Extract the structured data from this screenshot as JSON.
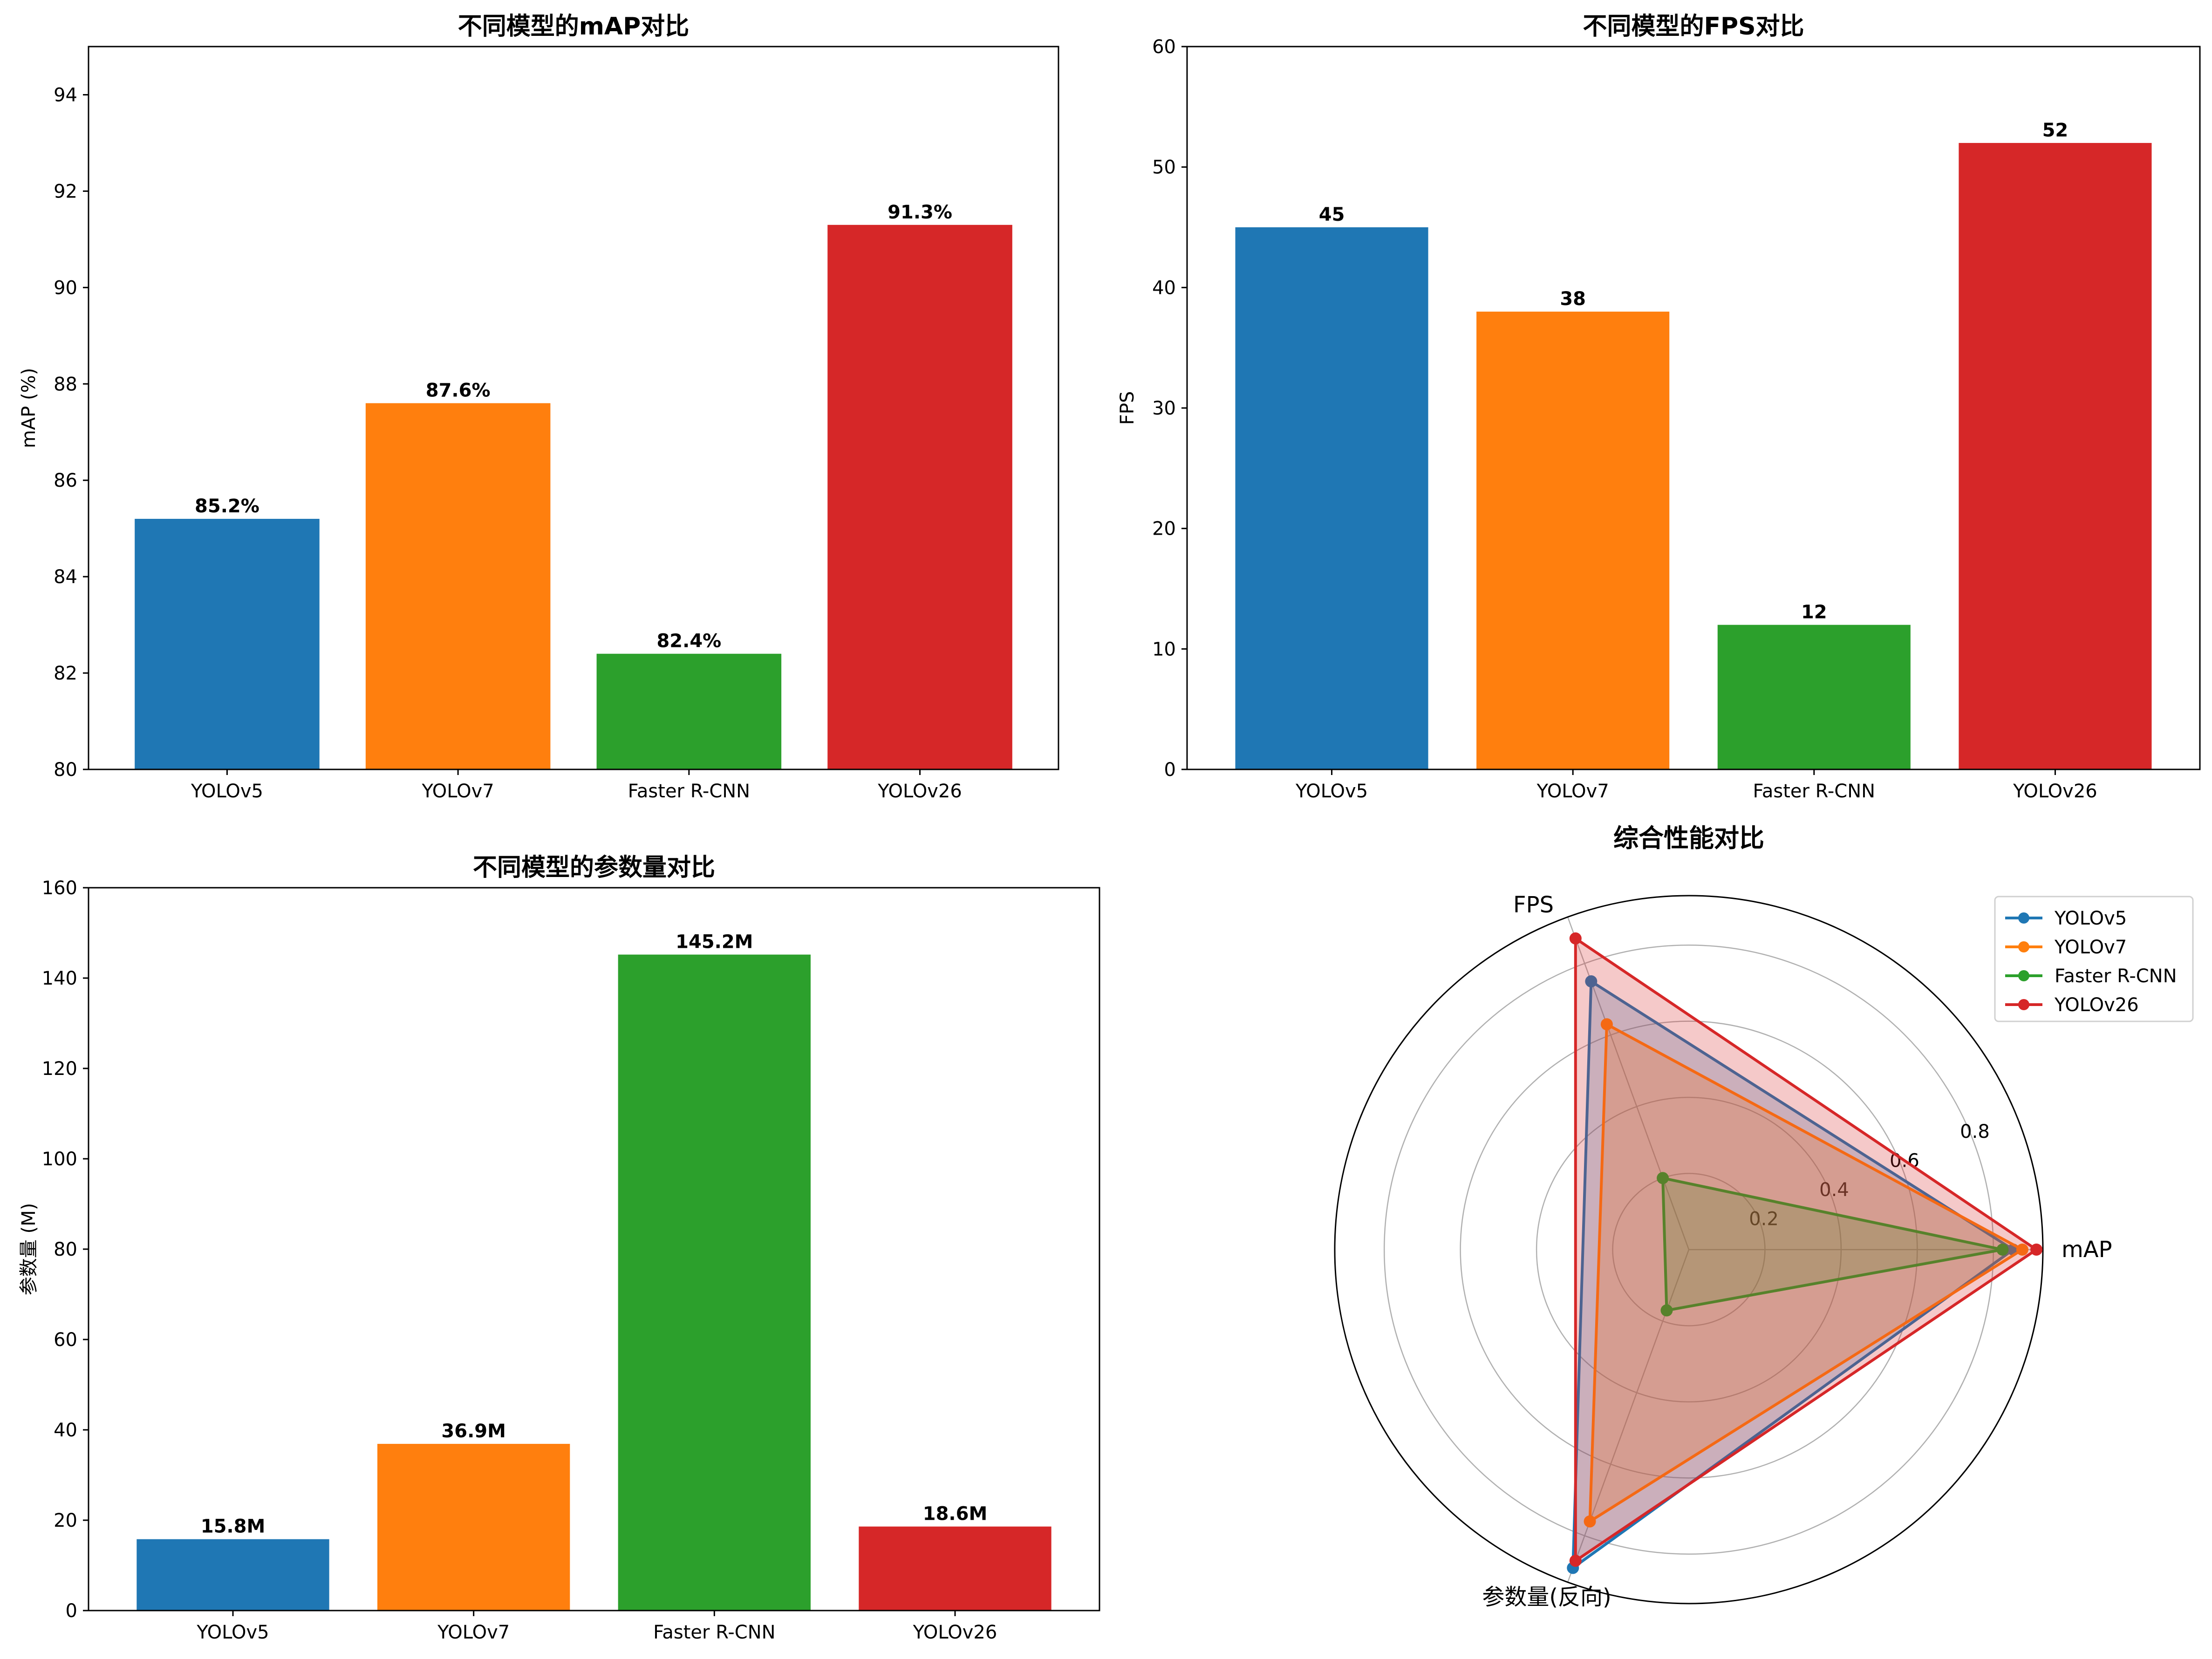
{
  "colors": {
    "YOLOv5": "#1f77b4",
    "YOLOv7": "#ff7f0e",
    "Faster R-CNN": "#2ca02c",
    "YOLOv26": "#d62728",
    "axis": "#000000",
    "grid": "#b0b0b0"
  },
  "chart_data": [
    {
      "type": "bar",
      "title": "不同模型的mAP对比",
      "xlabel": "",
      "ylabel": "mAP (%)",
      "categories": [
        "YOLOv5",
        "YOLOv7",
        "Faster R-CNN",
        "YOLOv26"
      ],
      "values": [
        85.2,
        87.6,
        82.4,
        91.3
      ],
      "value_labels": [
        "85.2%",
        "87.6%",
        "82.4%",
        "91.3%"
      ],
      "ylim": [
        80,
        95
      ],
      "yticks": [
        80,
        82,
        84,
        86,
        88,
        90,
        92,
        94
      ],
      "grid": false
    },
    {
      "type": "bar",
      "title": "不同模型的FPS对比",
      "xlabel": "",
      "ylabel": "FPS",
      "categories": [
        "YOLOv5",
        "YOLOv7",
        "Faster R-CNN",
        "YOLOv26"
      ],
      "values": [
        45,
        38,
        12,
        52
      ],
      "value_labels": [
        "45",
        "38",
        "12",
        "52"
      ],
      "ylim": [
        0,
        60
      ],
      "yticks": [
        0,
        10,
        20,
        30,
        40,
        50,
        60
      ],
      "grid": false
    },
    {
      "type": "bar",
      "title": "不同模型的参数量对比",
      "xlabel": "",
      "ylabel": "参数量 (M)",
      "categories": [
        "YOLOv5",
        "YOLOv7",
        "Faster R-CNN",
        "YOLOv26"
      ],
      "values": [
        15.8,
        36.9,
        145.2,
        18.6
      ],
      "value_labels": [
        "15.8M",
        "36.9M",
        "145.2M",
        "18.6M"
      ],
      "ylim": [
        0,
        160
      ],
      "yticks": [
        0,
        20,
        40,
        60,
        80,
        100,
        120,
        140,
        160
      ],
      "grid": false
    },
    {
      "type": "radar",
      "title": "综合性能对比",
      "axes": [
        "mAP",
        "FPS",
        "参数量(反向)"
      ],
      "rlim": [
        0,
        0.93
      ],
      "rticks": [
        0.2,
        0.4,
        0.6,
        0.8
      ],
      "rtick_labels": [
        "0.2",
        "0.4",
        "0.6",
        "0.8"
      ],
      "legend_position": "top-right",
      "series": [
        {
          "name": "YOLOv5",
          "values": [
            0.852,
            0.75,
            0.89
          ]
        },
        {
          "name": "YOLOv7",
          "values": [
            0.876,
            0.63,
            0.76
          ]
        },
        {
          "name": "Faster R-CNN",
          "values": [
            0.824,
            0.2,
            0.17
          ]
        },
        {
          "name": "YOLOv26",
          "values": [
            0.913,
            0.87,
            0.87
          ]
        }
      ]
    }
  ]
}
